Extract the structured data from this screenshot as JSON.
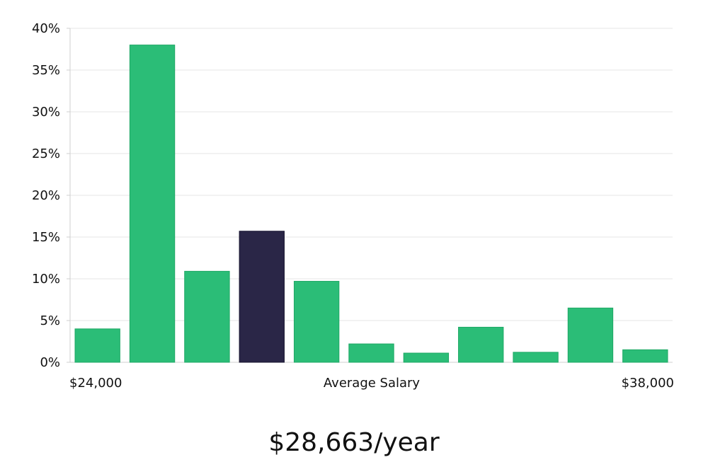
{
  "chart_data": {
    "type": "bar",
    "title": "",
    "xlabel": "Average Salary",
    "ylabel": "",
    "x_start_label": "$24,000",
    "x_end_label": "$38,000",
    "ylim": [
      0,
      40
    ],
    "yticks": [
      "0%",
      "5%",
      "10%",
      "15%",
      "20%",
      "25%",
      "30%",
      "35%",
      "40%"
    ],
    "ytick_values": [
      0,
      5,
      10,
      15,
      20,
      25,
      30,
      35,
      40
    ],
    "values": [
      4.0,
      38.0,
      10.9,
      15.7,
      9.7,
      2.2,
      1.1,
      4.2,
      1.2,
      6.5,
      1.5
    ],
    "highlight_index": 3,
    "bar_color": "#2bbd77",
    "highlight_color": "#2a2647",
    "grid": true
  },
  "headline": "$28,663/year"
}
